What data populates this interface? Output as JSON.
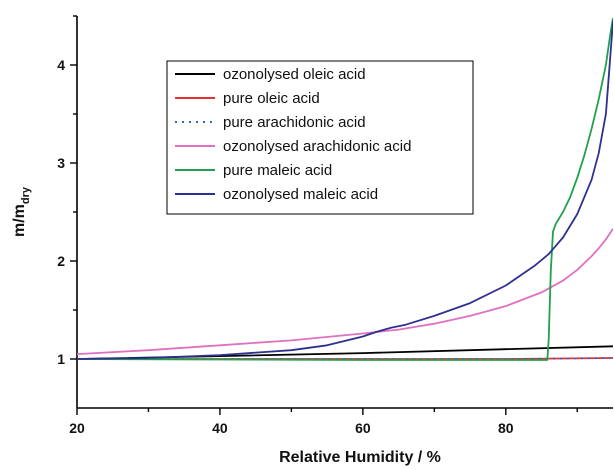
{
  "chart_data": {
    "type": "line",
    "xlabel": "Relative Humidity / %",
    "ylabel_main": "m/m",
    "ylabel_sub": "dry",
    "xlim": [
      20,
      95
    ],
    "ylim": [
      0.5,
      4.5
    ],
    "xticks": [
      20,
      40,
      60,
      80
    ],
    "yticks": [
      1,
      2,
      3,
      4
    ],
    "grid": false,
    "legend_placement": "top-center",
    "series": [
      {
        "name": "ozonolysed oleic acid",
        "color": "#000000",
        "dash": "solid",
        "points": [
          [
            20,
            1.0
          ],
          [
            40,
            1.03
          ],
          [
            60,
            1.06
          ],
          [
            80,
            1.1
          ],
          [
            95,
            1.13
          ]
        ]
      },
      {
        "name": "pure oleic acid",
        "color": "#e03030",
        "dash": "solid",
        "points": [
          [
            20,
            1.0
          ],
          [
            50,
            1.0
          ],
          [
            80,
            1.0
          ],
          [
            95,
            1.01
          ]
        ]
      },
      {
        "name": "pure arachidonic acid",
        "color": "#3366cc",
        "dash": "dotted",
        "points": [
          [
            20,
            1.0
          ],
          [
            50,
            1.0
          ],
          [
            80,
            1.0
          ],
          [
            95,
            1.01
          ]
        ]
      },
      {
        "name": "ozonolysed arachidonic acid",
        "color": "#e070c0",
        "dash": "solid",
        "points": [
          [
            20,
            1.05
          ],
          [
            30,
            1.09
          ],
          [
            40,
            1.14
          ],
          [
            50,
            1.19
          ],
          [
            60,
            1.26
          ],
          [
            65,
            1.3
          ],
          [
            70,
            1.36
          ],
          [
            75,
            1.44
          ],
          [
            80,
            1.54
          ],
          [
            85,
            1.68
          ],
          [
            88,
            1.8
          ],
          [
            90,
            1.91
          ],
          [
            92,
            2.05
          ],
          [
            93,
            2.13
          ],
          [
            94,
            2.22
          ],
          [
            95,
            2.33
          ]
        ]
      },
      {
        "name": "pure maleic acid",
        "color": "#20a050",
        "dash": "solid",
        "points": [
          [
            20,
            1.0
          ],
          [
            60,
            0.99
          ],
          [
            80,
            0.99
          ],
          [
            85.8,
            0.99
          ],
          [
            86.0,
            1.2
          ],
          [
            86.3,
            1.9
          ],
          [
            86.6,
            2.3
          ],
          [
            87.0,
            2.38
          ],
          [
            88,
            2.5
          ],
          [
            89,
            2.65
          ],
          [
            90,
            2.85
          ],
          [
            91,
            3.08
          ],
          [
            92,
            3.35
          ],
          [
            93,
            3.65
          ],
          [
            94,
            4.0
          ],
          [
            94.6,
            4.3
          ],
          [
            95,
            4.48
          ]
        ]
      },
      {
        "name": "ozonolysed maleic acid",
        "color": "#303090",
        "dash": "solid",
        "points": [
          [
            20,
            1.0
          ],
          [
            30,
            1.01
          ],
          [
            40,
            1.04
          ],
          [
            50,
            1.09
          ],
          [
            55,
            1.14
          ],
          [
            60,
            1.23
          ],
          [
            62,
            1.28
          ],
          [
            64,
            1.32
          ],
          [
            66,
            1.35
          ],
          [
            70,
            1.44
          ],
          [
            75,
            1.57
          ],
          [
            80,
            1.75
          ],
          [
            84,
            1.95
          ],
          [
            86,
            2.07
          ],
          [
            88,
            2.24
          ],
          [
            90,
            2.48
          ],
          [
            92,
            2.83
          ],
          [
            93,
            3.1
          ],
          [
            94,
            3.5
          ],
          [
            95,
            4.45
          ]
        ]
      }
    ]
  }
}
